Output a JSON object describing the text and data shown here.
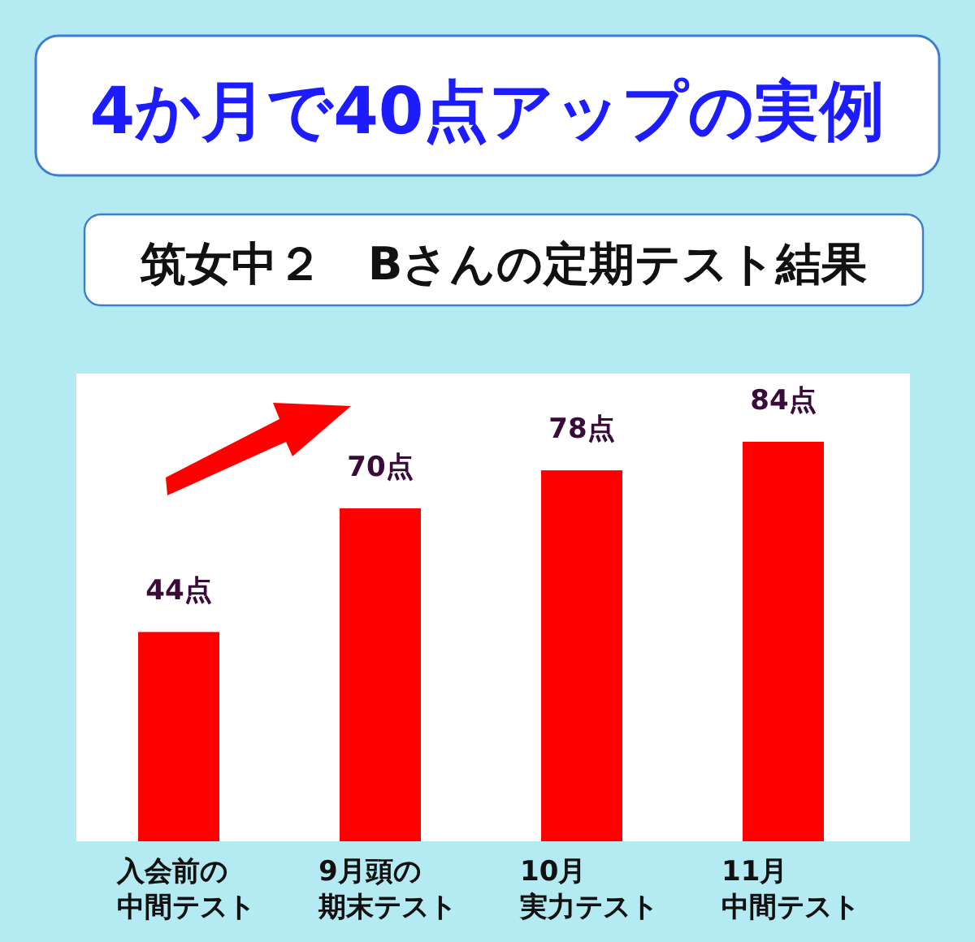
{
  "chart_data": {
    "type": "bar",
    "title": "4か月で40点アップの実例",
    "subtitle": "筑女中２　Bさんの定期テスト結果",
    "categories": [
      "入会前の中間テスト",
      "9月頭の期末テスト",
      "10月実力テスト",
      "11月中間テスト"
    ],
    "values": [
      44,
      70,
      78,
      84
    ],
    "value_labels": [
      "44点",
      "70点",
      "78点",
      "84点"
    ],
    "color": "#ff0000"
  }
}
